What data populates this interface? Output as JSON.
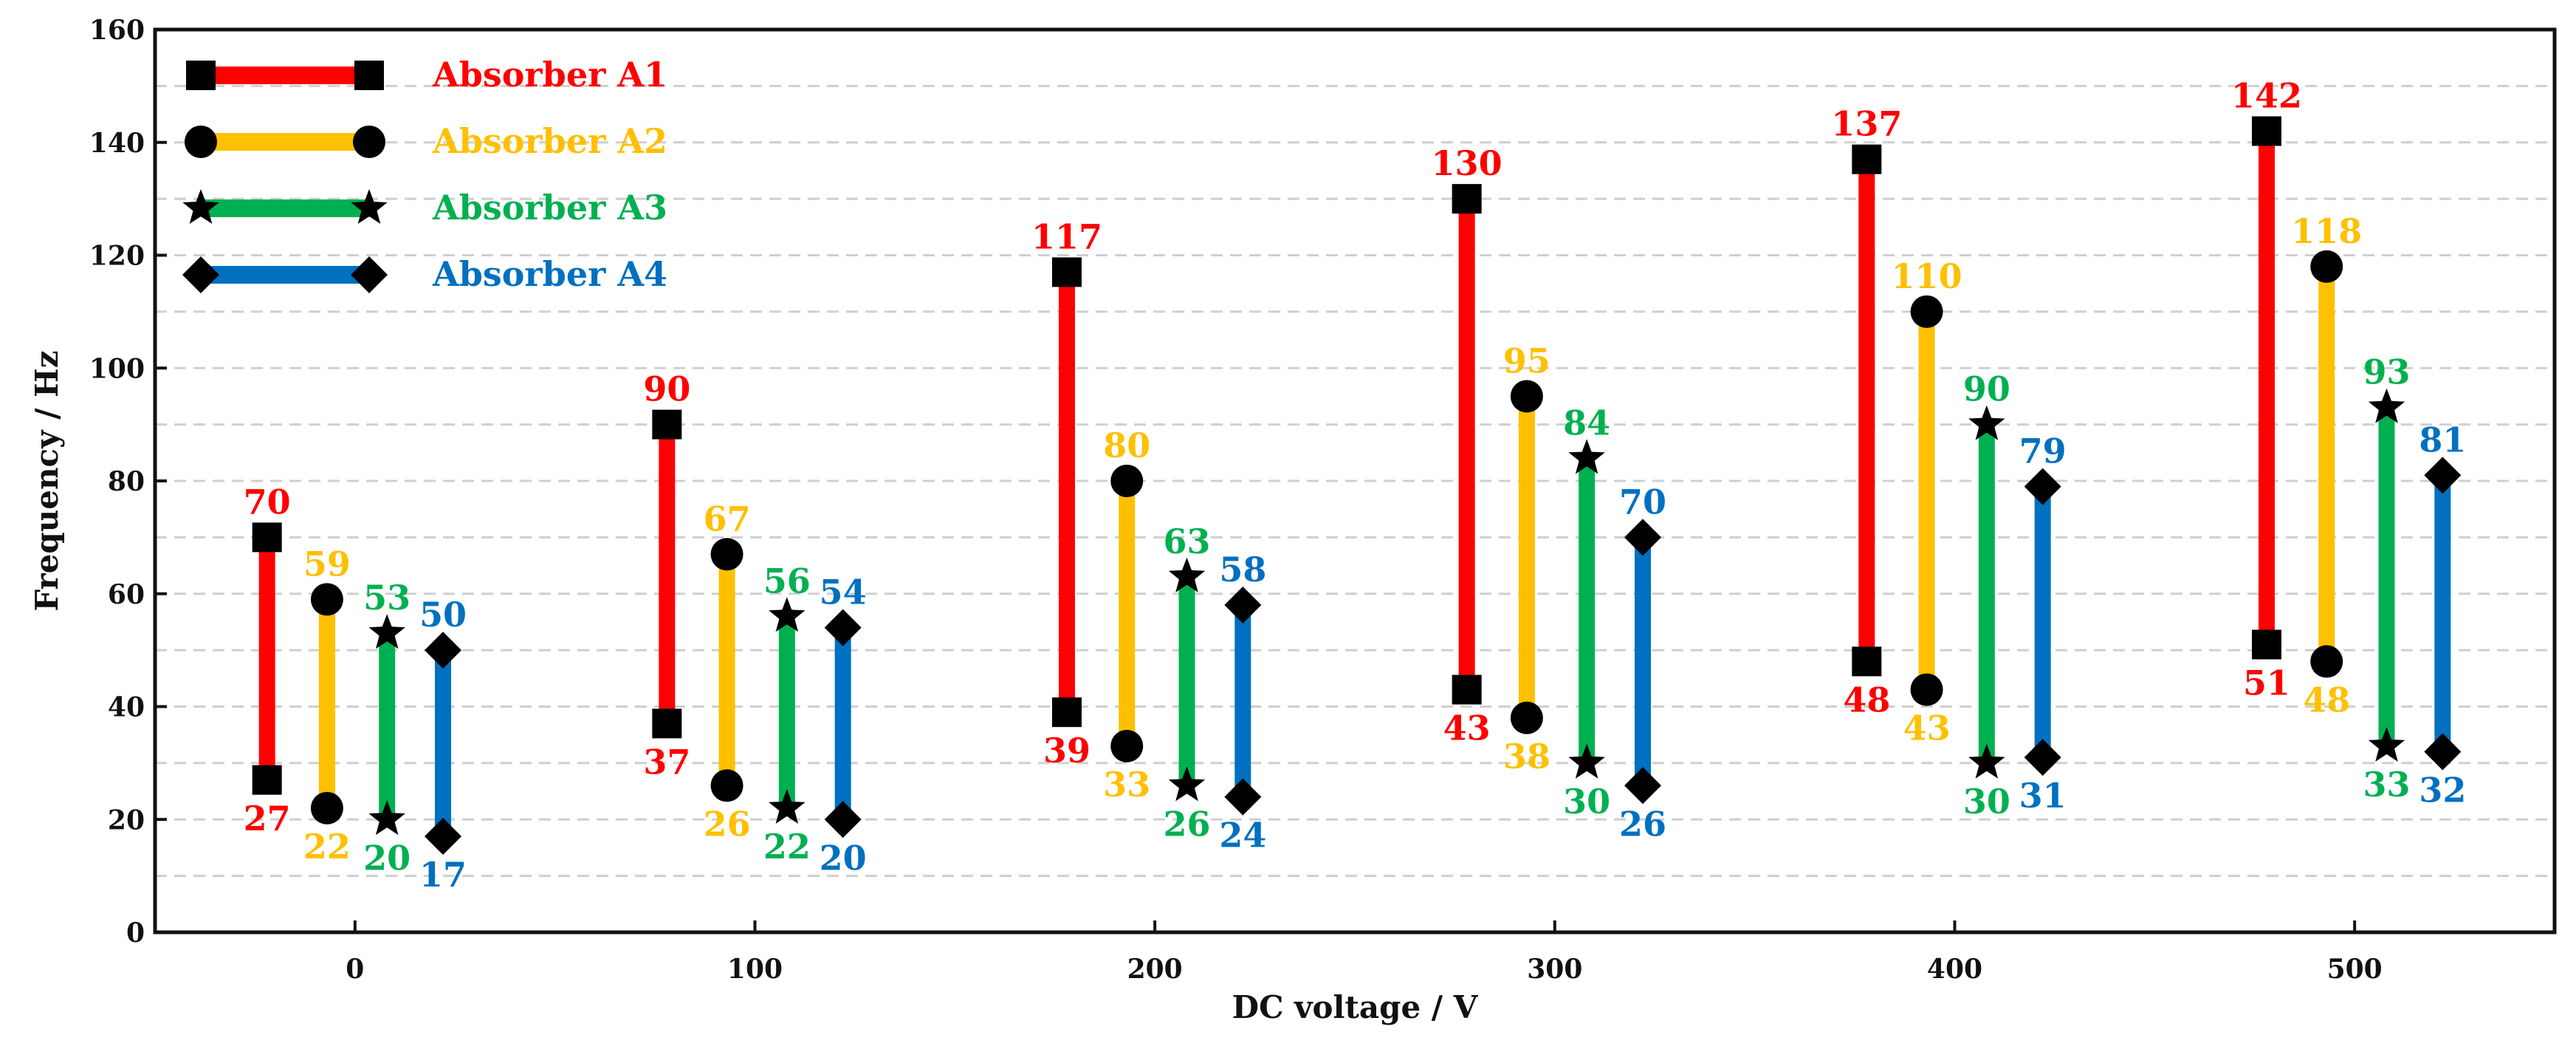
{
  "chart_data": {
    "type": "range-bar",
    "xlabel": "DC voltage / V",
    "ylabel": "Frequency / Hz",
    "xlim": [
      -50,
      550
    ],
    "ylim": [
      0,
      160
    ],
    "x_ticks": [
      0,
      100,
      200,
      300,
      400,
      500
    ],
    "y_ticks": [
      0,
      20,
      40,
      60,
      80,
      100,
      120,
      140,
      160
    ],
    "grid": "horizontal dashed",
    "legend_position": "top-left",
    "x": [
      0,
      100,
      200,
      300,
      400,
      500
    ],
    "series": [
      {
        "name": "Absorber A1",
        "color": "#ff0000",
        "marker": "square",
        "offset": -22,
        "low": [
          27,
          37,
          39,
          43,
          48,
          51
        ],
        "high": [
          70,
          90,
          117,
          130,
          137,
          142
        ]
      },
      {
        "name": "Absorber A2",
        "color": "#ffc000",
        "marker": "circle",
        "offset": -7,
        "low": [
          22,
          26,
          33,
          38,
          43,
          48
        ],
        "high": [
          59,
          67,
          80,
          95,
          110,
          118
        ]
      },
      {
        "name": "Absorber A3",
        "color": "#00b050",
        "marker": "star",
        "offset": 8,
        "low": [
          20,
          22,
          26,
          30,
          30,
          33
        ],
        "high": [
          53,
          56,
          63,
          84,
          90,
          93
        ]
      },
      {
        "name": "Absorber A4",
        "color": "#0070c0",
        "marker": "diamond",
        "offset": 22,
        "low": [
          17,
          20,
          24,
          26,
          31,
          32
        ],
        "high": [
          50,
          54,
          58,
          70,
          79,
          81
        ]
      }
    ]
  }
}
